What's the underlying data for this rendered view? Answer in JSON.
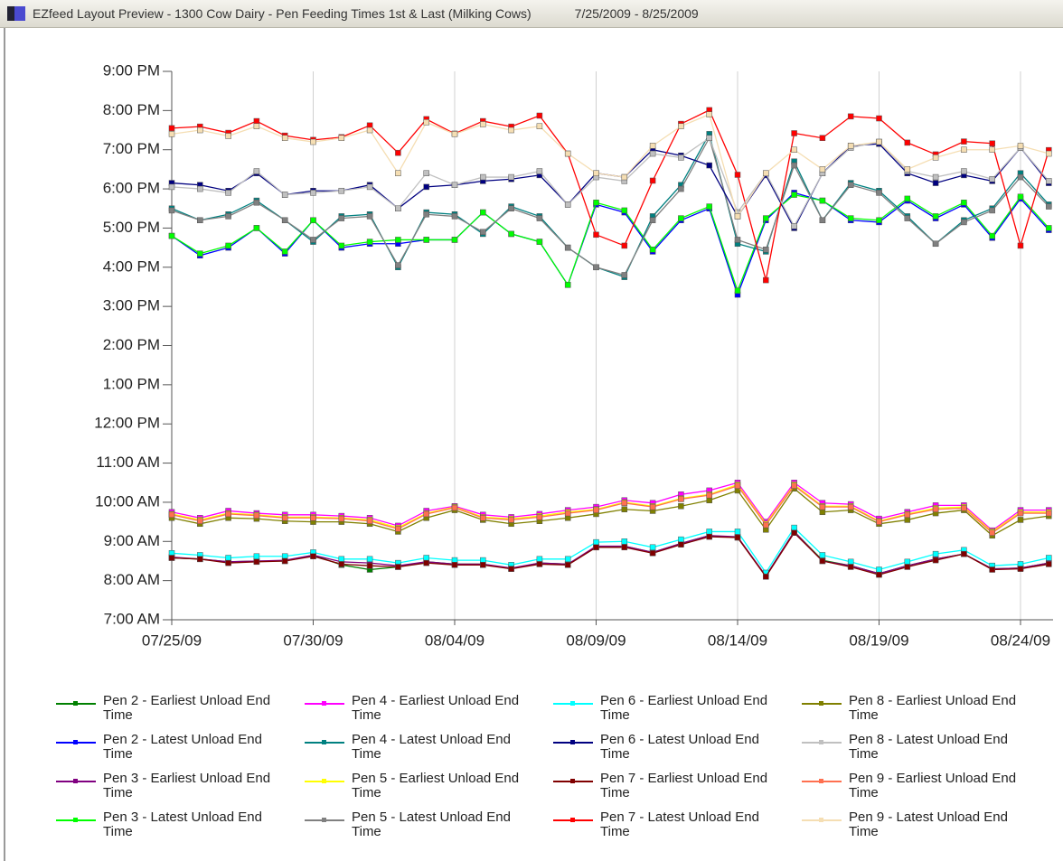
{
  "chart_data": {
    "type": "line",
    "title": "EZfeed Layout Preview - 1300 Cow Dairy - Pen Feeding Times 1st & Last (Milking Cows)",
    "subtitle": "7/25/2009 - 8/25/2009",
    "categories": [
      "07/25/09",
      null,
      null,
      null,
      null,
      "07/30/09",
      null,
      null,
      null,
      null,
      "08/04/09",
      null,
      null,
      null,
      null,
      "08/09/09",
      null,
      null,
      null,
      null,
      "08/14/09",
      null,
      null,
      null,
      null,
      "08/19/09",
      null,
      null,
      null,
      null,
      "08/24/09",
      null
    ],
    "ylim": [
      7,
      21
    ],
    "yticks": [
      {
        "value": 21,
        "label": "9:00 PM"
      },
      {
        "value": 20,
        "label": "8:00 PM"
      },
      {
        "value": 19,
        "label": "7:00 PM"
      },
      {
        "value": 18,
        "label": "6:00 PM"
      },
      {
        "value": 17,
        "label": "5:00 PM"
      },
      {
        "value": 16,
        "label": "4:00 PM"
      },
      {
        "value": 15,
        "label": "3:00 PM"
      },
      {
        "value": 14,
        "label": "2:00 PM"
      },
      {
        "value": 13,
        "label": "1:00 PM"
      },
      {
        "value": 12,
        "label": "12:00 PM"
      },
      {
        "value": 11,
        "label": "11:00 AM"
      },
      {
        "value": 10,
        "label": "10:00 AM"
      },
      {
        "value": 9,
        "label": "9:00 AM"
      },
      {
        "value": 8,
        "label": "8:00 AM"
      },
      {
        "value": 7,
        "label": "7:00 AM"
      }
    ],
    "grid": "x",
    "series": [
      {
        "name": "Pen 2 - Earliest Unload End Time",
        "color": "#008000",
        "values": [
          8.58,
          8.55,
          8.48,
          8.5,
          8.5,
          8.65,
          8.4,
          8.28,
          8.35,
          8.48,
          8.42,
          8.42,
          8.3,
          8.45,
          8.42,
          8.85,
          8.88,
          8.72,
          8.95,
          9.15,
          9.1,
          8.12,
          9.25,
          8.52,
          8.38,
          8.18,
          8.38,
          8.55,
          8.68,
          8.3,
          8.32,
          8.45
        ]
      },
      {
        "name": "Pen 2 - Latest Unload End Time",
        "color": "#0000ff",
        "values": [
          16.8,
          16.3,
          16.5,
          17.0,
          16.35,
          17.2,
          16.5,
          16.6,
          16.6,
          16.7,
          16.7,
          17.4,
          16.85,
          16.65,
          15.55,
          17.6,
          17.4,
          16.4,
          17.2,
          17.5,
          15.3,
          17.2,
          17.9,
          17.7,
          17.2,
          17.15,
          17.7,
          17.25,
          17.6,
          16.75,
          17.75,
          16.95
        ]
      },
      {
        "name": "Pen 3 - Earliest Unload End Time",
        "color": "#800080",
        "values": [
          8.6,
          8.55,
          8.48,
          8.5,
          8.52,
          8.65,
          8.48,
          8.45,
          8.38,
          8.48,
          8.42,
          8.42,
          8.32,
          8.45,
          8.42,
          8.88,
          8.88,
          8.72,
          8.95,
          9.15,
          9.12,
          8.12,
          9.25,
          8.5,
          8.38,
          8.18,
          8.38,
          8.55,
          8.68,
          8.3,
          8.32,
          8.45
        ]
      },
      {
        "name": "Pen 3 - Latest Unload End Time",
        "color": "#00ff00",
        "values": [
          16.8,
          16.35,
          16.55,
          17.0,
          16.4,
          17.2,
          16.55,
          16.65,
          16.7,
          16.7,
          16.7,
          17.4,
          16.85,
          16.65,
          15.55,
          17.65,
          17.45,
          16.45,
          17.25,
          17.55,
          15.4,
          17.25,
          17.85,
          17.7,
          17.25,
          17.2,
          17.75,
          17.3,
          17.65,
          16.8,
          17.8,
          17.0
        ]
      },
      {
        "name": "Pen 4 - Earliest Unload End Time",
        "color": "#ff00ff",
        "values": [
          9.75,
          9.6,
          9.78,
          9.72,
          9.68,
          9.68,
          9.65,
          9.6,
          9.4,
          9.78,
          9.9,
          9.68,
          9.62,
          9.7,
          9.8,
          9.88,
          10.05,
          9.98,
          10.2,
          10.3,
          10.5,
          9.5,
          10.5,
          9.98,
          9.95,
          9.58,
          9.75,
          9.92,
          9.92,
          9.28,
          9.8,
          9.8
        ]
      },
      {
        "name": "Pen 4 - Latest Unload End Time",
        "color": "#008080",
        "values": [
          17.5,
          17.2,
          17.35,
          17.7,
          17.2,
          16.65,
          17.3,
          17.35,
          16.0,
          17.4,
          17.35,
          16.85,
          17.55,
          17.3,
          16.5,
          16.0,
          15.75,
          17.3,
          18.1,
          19.4,
          16.6,
          16.4,
          18.7,
          17.2,
          18.15,
          17.95,
          17.3,
          16.6,
          17.2,
          17.5,
          18.4,
          17.6
        ]
      },
      {
        "name": "Pen 5 - Earliest Unload End Time",
        "color": "#ffff00",
        "values": [
          9.7,
          9.55,
          9.72,
          9.68,
          9.62,
          9.62,
          9.6,
          9.55,
          9.35,
          9.72,
          9.88,
          9.62,
          9.58,
          9.65,
          9.75,
          9.82,
          10.0,
          9.9,
          10.1,
          10.2,
          10.45,
          9.45,
          10.45,
          9.9,
          9.9,
          9.52,
          9.7,
          9.85,
          9.88,
          9.25,
          9.75,
          9.75
        ]
      },
      {
        "name": "Pen 5 - Latest Unload End Time",
        "color": "#808080",
        "values": [
          17.45,
          17.2,
          17.3,
          17.65,
          17.2,
          16.7,
          17.25,
          17.3,
          16.05,
          17.35,
          17.3,
          16.9,
          17.5,
          17.25,
          16.5,
          16.0,
          15.8,
          17.2,
          18.0,
          19.3,
          16.7,
          16.45,
          18.6,
          17.2,
          18.1,
          17.9,
          17.25,
          16.6,
          17.15,
          17.45,
          18.3,
          17.55
        ]
      },
      {
        "name": "Pen 6 - Earliest Unload End Time",
        "color": "#00ffff",
        "values": [
          8.7,
          8.65,
          8.58,
          8.62,
          8.62,
          8.72,
          8.55,
          8.55,
          8.45,
          8.58,
          8.52,
          8.52,
          8.4,
          8.55,
          8.55,
          8.98,
          9.0,
          8.85,
          9.05,
          9.25,
          9.25,
          8.2,
          9.35,
          8.65,
          8.48,
          8.28,
          8.48,
          8.68,
          8.78,
          8.38,
          8.42,
          8.58
        ]
      },
      {
        "name": "Pen 6 - Latest Unload End Time",
        "color": "#000080",
        "values": [
          18.15,
          18.1,
          17.95,
          18.4,
          17.85,
          17.95,
          17.95,
          18.1,
          17.5,
          18.05,
          18.1,
          18.2,
          18.25,
          18.35,
          17.6,
          18.4,
          18.3,
          19.0,
          18.85,
          18.6,
          17.3,
          18.35,
          17.0,
          18.4,
          19.1,
          19.15,
          18.4,
          18.15,
          18.35,
          18.2,
          19.05,
          18.15
        ]
      },
      {
        "name": "Pen 7 - Earliest Unload End Time",
        "color": "#800000",
        "values": [
          8.58,
          8.55,
          8.45,
          8.48,
          8.5,
          8.62,
          8.42,
          8.38,
          8.35,
          8.45,
          8.4,
          8.4,
          8.3,
          8.42,
          8.4,
          8.85,
          8.85,
          8.7,
          8.92,
          9.12,
          9.1,
          8.1,
          9.22,
          8.5,
          8.35,
          8.15,
          8.35,
          8.52,
          8.68,
          8.28,
          8.3,
          8.42
        ]
      },
      {
        "name": "Pen 7 - Latest Unload End Time",
        "color": "#ff0000",
        "values": [
          19.55,
          19.59,
          19.43,
          19.73,
          19.36,
          19.25,
          19.32,
          19.62,
          18.92,
          19.78,
          19.41,
          19.73,
          19.59,
          19.87,
          18.9,
          16.83,
          16.55,
          18.21,
          19.66,
          20.01,
          18.36,
          15.67,
          19.42,
          19.3,
          19.85,
          19.8,
          19.18,
          18.88,
          19.21,
          19.16,
          16.55,
          18.99
        ]
      },
      {
        "name": "Pen 8 - Earliest Unload End Time",
        "color": "#808000",
        "values": [
          9.6,
          9.45,
          9.6,
          9.58,
          9.52,
          9.5,
          9.5,
          9.45,
          9.25,
          9.6,
          9.8,
          9.55,
          9.45,
          9.52,
          9.6,
          9.7,
          9.82,
          9.78,
          9.9,
          10.05,
          10.3,
          9.3,
          10.35,
          9.75,
          9.8,
          9.45,
          9.55,
          9.72,
          9.8,
          9.15,
          9.55,
          9.65
        ]
      },
      {
        "name": "Pen 8 - Latest Unload End Time",
        "color": "#c0c0c0",
        "values": [
          18.05,
          18.0,
          17.9,
          18.45,
          17.85,
          17.9,
          17.95,
          18.05,
          17.5,
          18.4,
          18.1,
          18.3,
          18.3,
          18.45,
          17.6,
          18.3,
          18.2,
          18.9,
          18.8,
          19.3,
          17.4,
          18.4,
          17.05,
          18.4,
          19.05,
          19.2,
          18.45,
          18.3,
          18.45,
          18.25,
          19.05,
          18.2
        ]
      },
      {
        "name": "Pen 9 - Earliest Unload End Time",
        "color": "#ff7050",
        "values": [
          9.68,
          9.52,
          9.7,
          9.66,
          9.6,
          9.6,
          9.58,
          9.52,
          9.32,
          9.7,
          9.86,
          9.6,
          9.55,
          9.62,
          9.72,
          9.8,
          9.98,
          9.88,
          10.08,
          10.18,
          10.42,
          9.42,
          10.42,
          9.88,
          9.88,
          9.5,
          9.68,
          9.82,
          9.85,
          9.22,
          9.72,
          9.72
        ]
      },
      {
        "name": "Pen 9 - Latest Unload End Time",
        "color": "#f5deb3",
        "values": [
          19.4,
          19.5,
          19.35,
          19.6,
          19.3,
          19.2,
          19.3,
          19.5,
          18.4,
          19.7,
          19.4,
          19.65,
          19.5,
          19.6,
          18.9,
          18.4,
          18.3,
          19.1,
          19.6,
          19.9,
          17.3,
          18.4,
          19.0,
          18.5,
          19.1,
          19.2,
          18.5,
          18.8,
          19.0,
          19.0,
          19.1,
          18.9
        ]
      }
    ]
  }
}
